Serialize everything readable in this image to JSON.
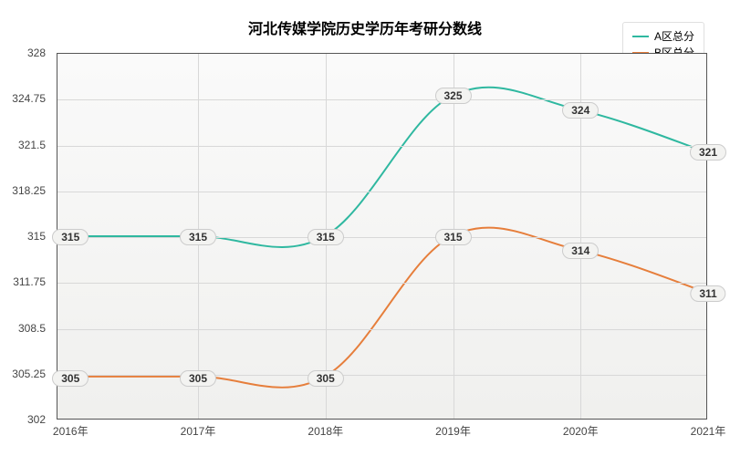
{
  "chart": {
    "type": "line",
    "title": "河北传媒学院历史学历年考研分数线",
    "title_fontsize": 16,
    "background_color": "#ffffff",
    "plot_bg_top": "#fafafa",
    "plot_bg_bottom": "#f0f0ee",
    "grid_color": "#d8d8d8",
    "border_color": "#555555",
    "x_categories": [
      "2016年",
      "2017年",
      "2018年",
      "2019年",
      "2020年",
      "2021年"
    ],
    "ylim": [
      302,
      328
    ],
    "ytick_step": 3.25,
    "y_ticks": [
      302,
      305.25,
      308.5,
      311.75,
      315,
      318.25,
      321.5,
      324.75,
      328
    ],
    "label_fontsize": 12,
    "line_width": 2,
    "series": [
      {
        "name": "A区总分",
        "color": "#2fb8a0",
        "values": [
          315,
          315,
          315,
          325,
          324,
          321
        ]
      },
      {
        "name": "B区总分",
        "color": "#e67e3b",
        "values": [
          305,
          305,
          305,
          315,
          314,
          311
        ]
      }
    ]
  }
}
